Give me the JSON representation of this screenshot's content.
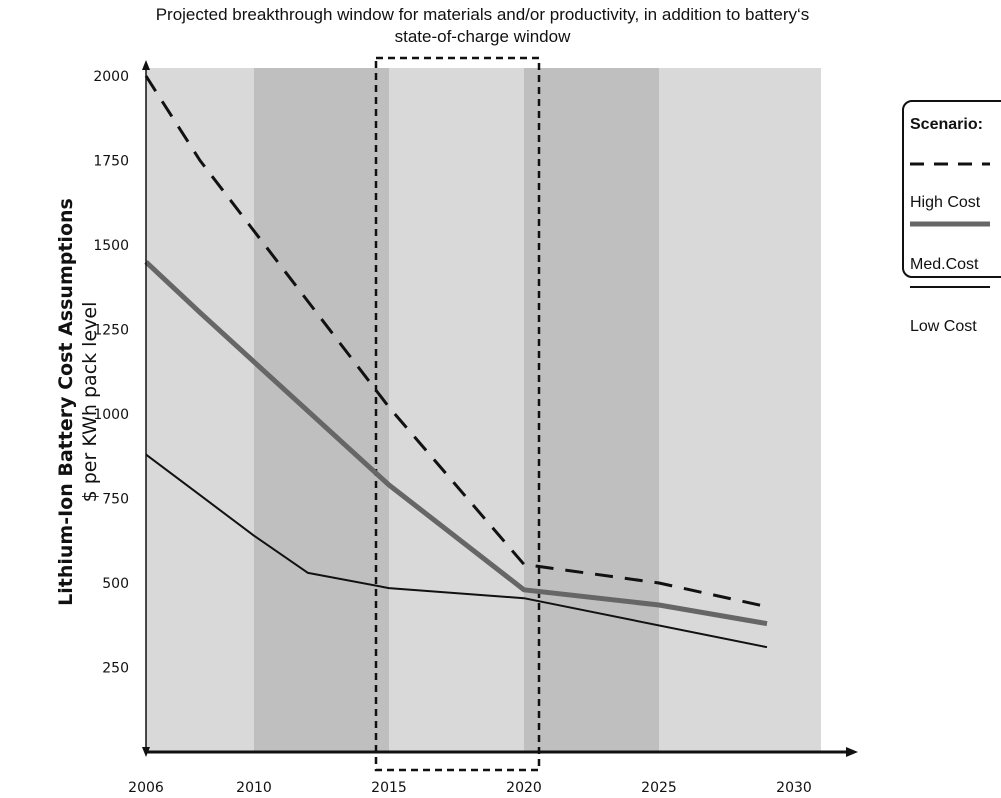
{
  "chart_data": {
    "type": "line",
    "annotation": "Projected breakthrough window for materials and/or productivity, in addition to battery‘s state-of-charge window",
    "ylabel_main": "Lithium-Ion Battery Cost Assumptions",
    "ylabel_sub": "$ per KWh pack level",
    "xlim": [
      2006,
      2031
    ],
    "ylim": [
      0,
      2060
    ],
    "x_ticks": [
      2006,
      2010,
      2015,
      2020,
      2025,
      2030
    ],
    "y_ticks": [
      250,
      500,
      750,
      1000,
      1250,
      1500,
      1750,
      2000
    ],
    "bands": [
      {
        "from": 2006,
        "to": 2010,
        "shade": "light"
      },
      {
        "from": 2010,
        "to": 2015,
        "shade": "dark"
      },
      {
        "from": 2015,
        "to": 2020,
        "shade": "light"
      },
      {
        "from": 2020,
        "to": 2025,
        "shade": "dark"
      },
      {
        "from": 2025,
        "to": 2030,
        "shade": "light"
      }
    ],
    "highlight_window": {
      "from": 2015,
      "to": 2020
    },
    "legend_title": "Scenario:",
    "series": [
      {
        "name": "High Cost",
        "style": "dashed",
        "color": "#111111",
        "x": [
          2006,
          2008,
          2015,
          2020,
          2025,
          2029
        ],
        "y": [
          2000,
          1750,
          1020,
          555,
          500,
          430
        ]
      },
      {
        "name": "Med.Cost",
        "style": "thick",
        "color": "#666666",
        "x": [
          2006,
          2008,
          2015,
          2020,
          2025,
          2029
        ],
        "y": [
          1450,
          1300,
          790,
          480,
          435,
          380
        ]
      },
      {
        "name": "Low Cost",
        "style": "thin",
        "color": "#111111",
        "x": [
          2006,
          2008,
          2010,
          2012,
          2015,
          2020,
          2029
        ],
        "y": [
          880,
          760,
          640,
          530,
          485,
          455,
          310
        ]
      }
    ]
  },
  "colors": {
    "band_light": "#d9d9d9",
    "band_dark": "#bfbfbf",
    "axis": "#111111"
  }
}
